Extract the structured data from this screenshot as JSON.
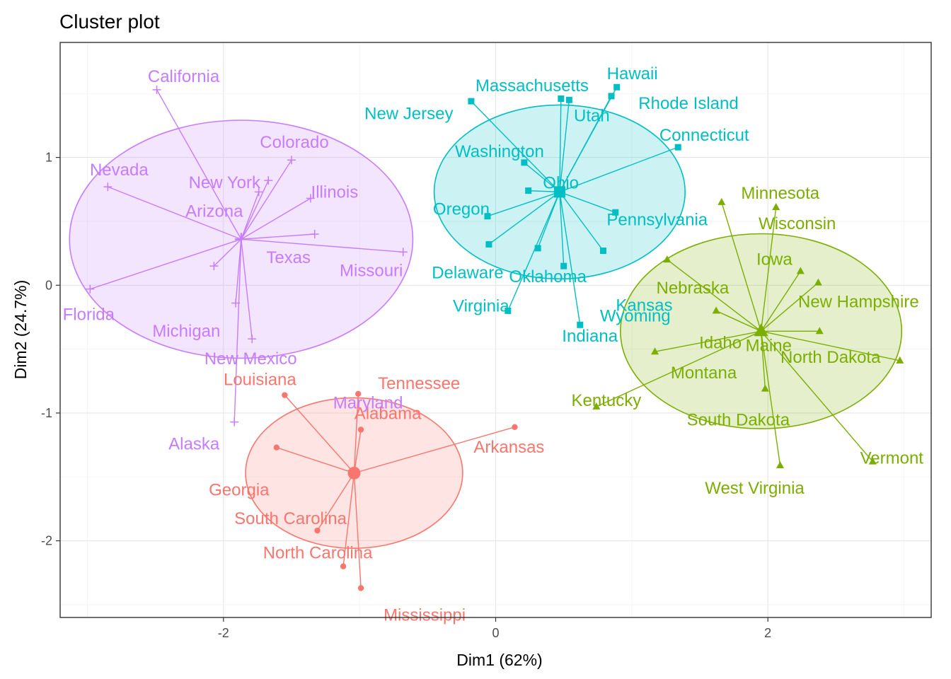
{
  "chart_data": {
    "type": "scatter",
    "title": "Cluster plot",
    "xlabel": "Dim1 (62%)",
    "ylabel": "Dim2 (24.7%)",
    "xlim": [
      -3.2,
      3.2
    ],
    "ylim": [
      -2.6,
      1.9
    ],
    "x_ticks": [
      -2,
      0,
      2
    ],
    "y_ticks": [
      -2,
      -1,
      0,
      1
    ],
    "x_tick_labels": [
      "-2",
      "0",
      "2"
    ],
    "y_tick_labels": [
      "-2",
      "-1",
      "0",
      "1"
    ],
    "grid": true,
    "legend": "none",
    "clusters": [
      {
        "id": 1,
        "color": "#F8766D",
        "marker": "circle",
        "center": [
          -1.04,
          -1.47
        ],
        "points": [
          {
            "label": "Alabama",
            "x": -0.99,
            "y": -1.13
          },
          {
            "label": "Arkansas",
            "x": 0.14,
            "y": -1.11
          },
          {
            "label": "Georgia",
            "x": -1.61,
            "y": -1.27
          },
          {
            "label": "Louisiana",
            "x": -1.55,
            "y": -0.86
          },
          {
            "label": "Mississippi",
            "x": -0.99,
            "y": -2.37
          },
          {
            "label": "North Carolina",
            "x": -1.12,
            "y": -2.2
          },
          {
            "label": "South Carolina",
            "x": -1.31,
            "y": -1.92
          },
          {
            "label": "Tennessee",
            "x": -1.01,
            "y": -0.85
          }
        ]
      },
      {
        "id": 2,
        "color": "#C77CFF",
        "marker": "plus",
        "center": [
          -1.87,
          0.36
        ],
        "points": [
          {
            "label": "Alaska",
            "x": -1.92,
            "y": -1.07
          },
          {
            "label": "Arizona",
            "x": -1.74,
            "y": 0.73
          },
          {
            "label": "California",
            "x": -2.49,
            "y": 1.53
          },
          {
            "label": "Colorado",
            "x": -1.5,
            "y": 0.98
          },
          {
            "label": "Florida",
            "x": -2.98,
            "y": -0.03
          },
          {
            "label": "Illinois",
            "x": -1.36,
            "y": 0.68
          },
          {
            "label": "Michigan",
            "x": -2.07,
            "y": 0.15
          },
          {
            "label": "Missouri",
            "x": -0.68,
            "y": 0.26
          },
          {
            "label": "Nevada",
            "x": -2.85,
            "y": 0.77
          },
          {
            "label": "New Mexico",
            "x": -1.79,
            "y": -0.42
          },
          {
            "label": "New York",
            "x": -1.67,
            "y": 0.82
          },
          {
            "label": "Texas",
            "x": -1.33,
            "y": 0.4
          },
          {
            "label": "Maryland",
            "x": -1.91,
            "y": -0.14
          }
        ]
      },
      {
        "id": 3,
        "color": "#00BFC4",
        "marker": "square",
        "center": [
          0.47,
          0.73
        ],
        "points": [
          {
            "label": "Connecticut",
            "x": 1.34,
            "y": 1.08
          },
          {
            "label": "Delaware",
            "x": -0.05,
            "y": 0.32
          },
          {
            "label": "Hawaii",
            "x": 0.89,
            "y": 1.55
          },
          {
            "label": "Indiana",
            "x": 0.5,
            "y": 0.15
          },
          {
            "label": "Kansas",
            "x": 0.79,
            "y": 0.27
          },
          {
            "label": "Massachusetts",
            "x": -0.18,
            "y": 1.44
          },
          {
            "label": "New Jersey",
            "x": 0.48,
            "y": 1.46
          },
          {
            "label": "Ohio",
            "x": 0.24,
            "y": 0.74
          },
          {
            "label": "Oklahoma",
            "x": 0.31,
            "y": 0.29
          },
          {
            "label": "Oregon",
            "x": -0.06,
            "y": 0.54
          },
          {
            "label": "Pennsylvania",
            "x": 0.88,
            "y": 0.57
          },
          {
            "label": "Rhode Island",
            "x": 0.85,
            "y": 1.48
          },
          {
            "label": "Utah",
            "x": 0.54,
            "y": 1.45
          },
          {
            "label": "Virginia",
            "x": 0.09,
            "y": -0.2
          },
          {
            "label": "Washington",
            "x": 0.21,
            "y": 0.96
          },
          {
            "label": "Wyoming",
            "x": 0.62,
            "y": -0.31
          }
        ]
      },
      {
        "id": 4,
        "color": "#7CAE00",
        "marker": "triangle",
        "center": [
          1.95,
          -0.36
        ],
        "points": [
          {
            "label": "Idaho",
            "x": 1.62,
            "y": -0.2
          },
          {
            "label": "Iowa",
            "x": 2.24,
            "y": 0.11
          },
          {
            "label": "Kentucky",
            "x": 0.74,
            "y": -0.95
          },
          {
            "label": "Maine",
            "x": 2.38,
            "y": -0.36
          },
          {
            "label": "Minnesota",
            "x": 1.66,
            "y": 0.65
          },
          {
            "label": "Montana",
            "x": 1.17,
            "y": -0.52
          },
          {
            "label": "Nebraska",
            "x": 1.26,
            "y": 0.2
          },
          {
            "label": "New Hampshire",
            "x": 2.37,
            "y": 0.02
          },
          {
            "label": "North Dakota",
            "x": 2.97,
            "y": -0.59
          },
          {
            "label": "South Dakota",
            "x": 1.98,
            "y": -0.81
          },
          {
            "label": "Vermont",
            "x": 2.77,
            "y": -1.38
          },
          {
            "label": "West Virginia",
            "x": 2.09,
            "y": -1.41
          },
          {
            "label": "Wisconsin",
            "x": 2.06,
            "y": 0.61
          }
        ]
      }
    ]
  }
}
